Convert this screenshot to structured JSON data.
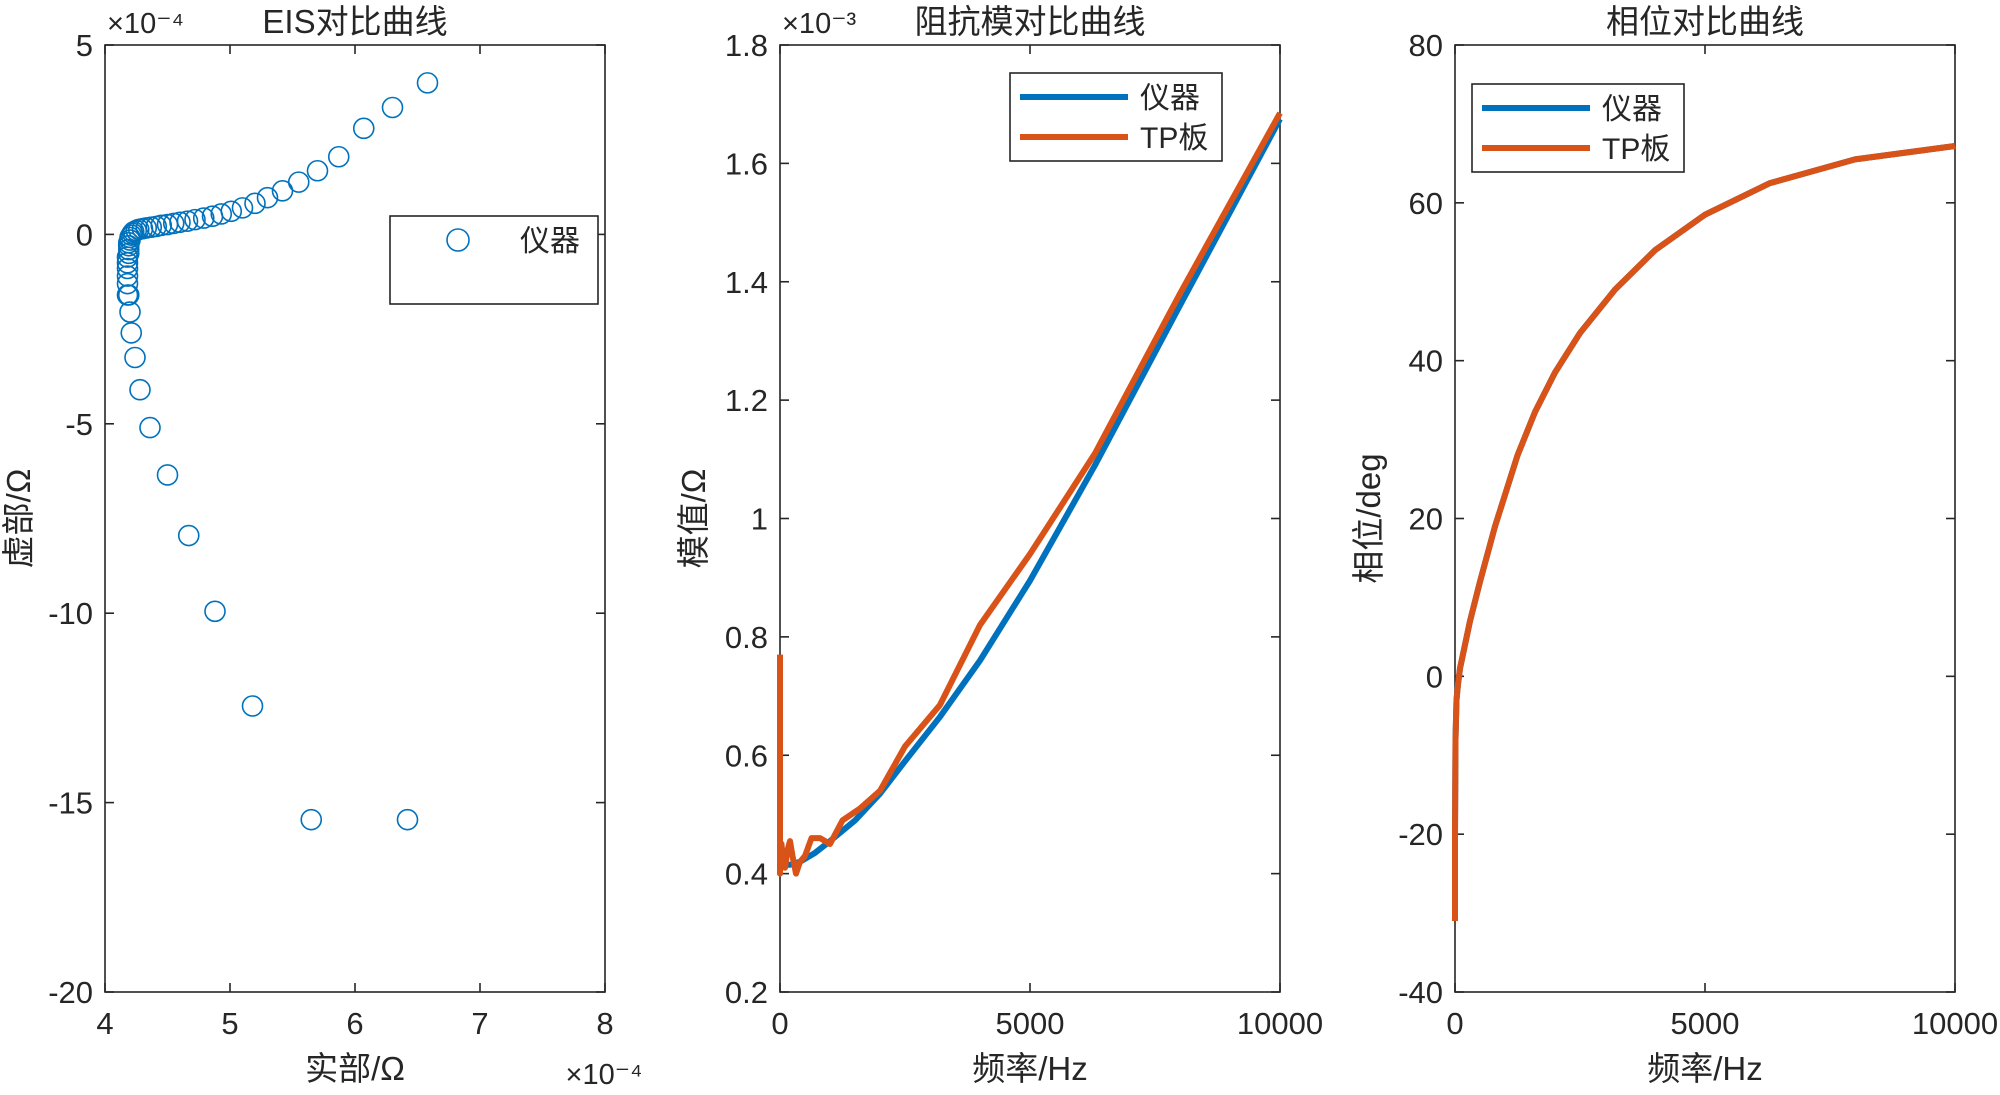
{
  "colors": {
    "instrument": "#0072BD",
    "tp_board": "#D95319",
    "axis": "#262626"
  },
  "chart_data": [
    {
      "type": "scatter",
      "title": "EIS对比曲线",
      "xlabel": "实部/Ω",
      "ylabel": "虚部/Ω",
      "x_exponent": "×10⁻⁴",
      "y_exponent": "×10⁻⁴",
      "xlim": [
        4,
        8
      ],
      "ylim": [
        -20,
        5
      ],
      "xticks": [
        4,
        5,
        6,
        7,
        8
      ],
      "yticks": [
        -20,
        -15,
        -10,
        -5,
        0,
        5
      ],
      "xtick_labels": [
        "4",
        "5",
        "6",
        "7",
        "8"
      ],
      "ytick_labels": [
        "-20",
        "-15",
        "-10",
        "-5",
        "0",
        "5"
      ],
      "grid": false,
      "legend": {
        "position": "top-right",
        "marker": "circle"
      },
      "series": [
        {
          "name": "仪器",
          "color": "#0072BD",
          "x": [
            4.18,
            4.18,
            4.18,
            4.18,
            4.18,
            4.18,
            4.19,
            4.19,
            4.19,
            4.19,
            4.2,
            4.2,
            4.21,
            4.22,
            4.23,
            4.25,
            4.27,
            4.3,
            4.33,
            4.37,
            4.41,
            4.45,
            4.5,
            4.55,
            4.6,
            4.66,
            4.72,
            4.79,
            4.86,
            4.93,
            5.01,
            5.1,
            5.2,
            5.3,
            5.42,
            5.55,
            5.7,
            5.87,
            6.07,
            6.3,
            6.58,
            4.19,
            4.2,
            4.21,
            4.24,
            4.28,
            4.36,
            4.5,
            4.67,
            4.88,
            5.18,
            5.65,
            6.42
          ],
          "y": [
            -1.6,
            -1.3,
            -1.1,
            -0.9,
            -0.75,
            -0.6,
            -0.5,
            -0.4,
            -0.3,
            -0.22,
            -0.15,
            -0.08,
            -0.02,
            0.03,
            0.07,
            0.1,
            0.13,
            0.15,
            0.17,
            0.19,
            0.21,
            0.24,
            0.26,
            0.29,
            0.32,
            0.35,
            0.39,
            0.43,
            0.48,
            0.54,
            0.61,
            0.7,
            0.82,
            0.97,
            1.15,
            1.38,
            1.68,
            2.05,
            2.8,
            3.35,
            4.0,
            -1.6,
            -2.05,
            -2.6,
            -3.25,
            -4.1,
            -5.1,
            -6.35,
            -7.95,
            -9.95,
            -12.45,
            -15.45,
            -15.45
          ],
          "note": ""
        }
      ]
    },
    {
      "type": "line",
      "title": "阻抗模对比曲线",
      "xlabel": "频率/Hz",
      "ylabel": "模值/Ω",
      "y_exponent": "×10⁻³",
      "xlim": [
        0,
        10000
      ],
      "ylim": [
        0.2,
        1.8
      ],
      "xticks": [
        0,
        5000,
        10000
      ],
      "yticks": [
        0.2,
        0.4,
        0.6,
        0.8,
        1.0,
        1.2,
        1.4,
        1.6,
        1.8
      ],
      "xtick_labels": [
        "0",
        "5000",
        "10000"
      ],
      "ytick_labels": [
        "0.2",
        "0.4",
        "0.6",
        "0.8",
        "1",
        "1.2",
        "1.4",
        "1.6",
        "1.8"
      ],
      "grid": false,
      "legend": {
        "position": "top-right"
      },
      "series": [
        {
          "name": "仪器",
          "color": "#0072BD",
          "x": [
            10,
            100,
            200,
            400,
            700,
            1000,
            1500,
            2000,
            2500,
            3200,
            4000,
            5000,
            6300,
            8000,
            10000
          ],
          "y": [
            0.42,
            0.415,
            0.415,
            0.42,
            0.435,
            0.455,
            0.49,
            0.535,
            0.59,
            0.665,
            0.76,
            0.895,
            1.09,
            1.36,
            1.675
          ]
        },
        {
          "name": "TP板",
          "color": "#D95319",
          "x": [
            0,
            0,
            30,
            60,
            100,
            150,
            200,
            250,
            320,
            400,
            500,
            630,
            800,
            1000,
            1250,
            1600,
            2000,
            2500,
            3200,
            4000,
            5000,
            6300,
            8000,
            10000
          ],
          "y": [
            0.77,
            0.4,
            0.45,
            0.42,
            0.41,
            0.44,
            0.455,
            0.43,
            0.4,
            0.42,
            0.43,
            0.46,
            0.46,
            0.45,
            0.49,
            0.51,
            0.54,
            0.615,
            0.685,
            0.82,
            0.94,
            1.11,
            1.38,
            1.685
          ]
        }
      ]
    },
    {
      "type": "line",
      "title": "相位对比曲线",
      "xlabel": "频率/Hz",
      "ylabel": "相位/deg",
      "xlim": [
        0,
        10000
      ],
      "ylim": [
        -40,
        80
      ],
      "xticks": [
        0,
        5000,
        10000
      ],
      "yticks": [
        -40,
        -20,
        0,
        20,
        40,
        60,
        80
      ],
      "xtick_labels": [
        "0",
        "5000",
        "10000"
      ],
      "ytick_labels": [
        "-40",
        "-20",
        "0",
        "20",
        "40",
        "60",
        "80"
      ],
      "grid": false,
      "legend": {
        "position": "top-left"
      },
      "series": [
        {
          "name": "仪器",
          "color": "#0072BD",
          "x": [
            0,
            0,
            10,
            30,
            60,
            100,
            200,
            300,
            500,
            800,
            1250,
            1600,
            2000,
            2500,
            3200,
            4000,
            5000,
            6300,
            8000,
            10000
          ],
          "y": [
            -31,
            -20,
            -8,
            -3,
            -1,
            1,
            4,
            7,
            12,
            19,
            28,
            33.5,
            38.5,
            43.5,
            49,
            54,
            58.5,
            62.5,
            65.5,
            67.2
          ]
        },
        {
          "name": "TP板",
          "color": "#D95319",
          "x": [
            0,
            0,
            10,
            30,
            60,
            100,
            200,
            300,
            500,
            800,
            1250,
            1600,
            2000,
            2500,
            3200,
            4000,
            5000,
            6300,
            8000,
            10000
          ],
          "y": [
            -31,
            -20,
            -8,
            -3,
            -1,
            1,
            4,
            7,
            12,
            19,
            28,
            33.5,
            38.5,
            43.5,
            49,
            54,
            58.5,
            62.5,
            65.5,
            67.2
          ]
        }
      ]
    }
  ]
}
